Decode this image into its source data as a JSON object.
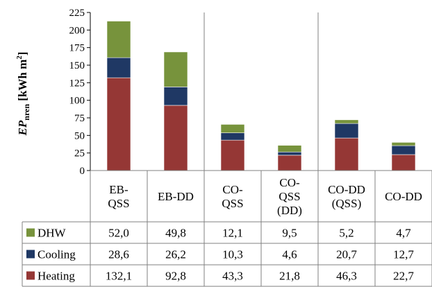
{
  "chart_data": {
    "type": "bar",
    "stacked": true,
    "ylabel_main": "EP",
    "ylabel_sub": "nren",
    "ylabel_unit_pre": "[kWh m",
    "ylabel_unit_sup": "2",
    "ylabel_unit_post": "]",
    "ylim": [
      0,
      225
    ],
    "yticks": [
      "0",
      "25",
      "50",
      "75",
      "100",
      "125",
      "150",
      "175",
      "200",
      "225"
    ],
    "categories": [
      [
        "EB-",
        "QSS"
      ],
      [
        "EB-DD"
      ],
      [
        "CO-",
        "QSS"
      ],
      [
        "CO-",
        "QSS",
        "(DD)"
      ],
      [
        "CO-DD",
        "(QSS)"
      ],
      [
        "CO-DD"
      ]
    ],
    "group_separators_after": [
      1,
      3
    ],
    "series": [
      {
        "name": "Heating",
        "color": "#953735",
        "values": [
          132.1,
          92.8,
          43.3,
          21.8,
          46.3,
          22.7
        ],
        "labels": [
          "132,1",
          "92,8",
          "43,3",
          "21,8",
          "46,3",
          "22,7"
        ]
      },
      {
        "name": "Cooling",
        "color": "#1f3864",
        "values": [
          28.6,
          26.2,
          10.3,
          4.6,
          20.7,
          12.7
        ],
        "labels": [
          "28,6",
          "26,2",
          "10,3",
          "4,6",
          "20,7",
          "12,7"
        ]
      },
      {
        "name": "DHW",
        "color": "#77933c",
        "values": [
          52.0,
          49.8,
          12.1,
          9.5,
          5.2,
          4.7
        ],
        "labels": [
          "52,0",
          "49,8",
          "12,1",
          "9,5",
          "5,2",
          "4,7"
        ]
      }
    ],
    "table_row_order": [
      "DHW",
      "Cooling",
      "Heating"
    ],
    "grid": false,
    "legend": "data-table-left"
  }
}
